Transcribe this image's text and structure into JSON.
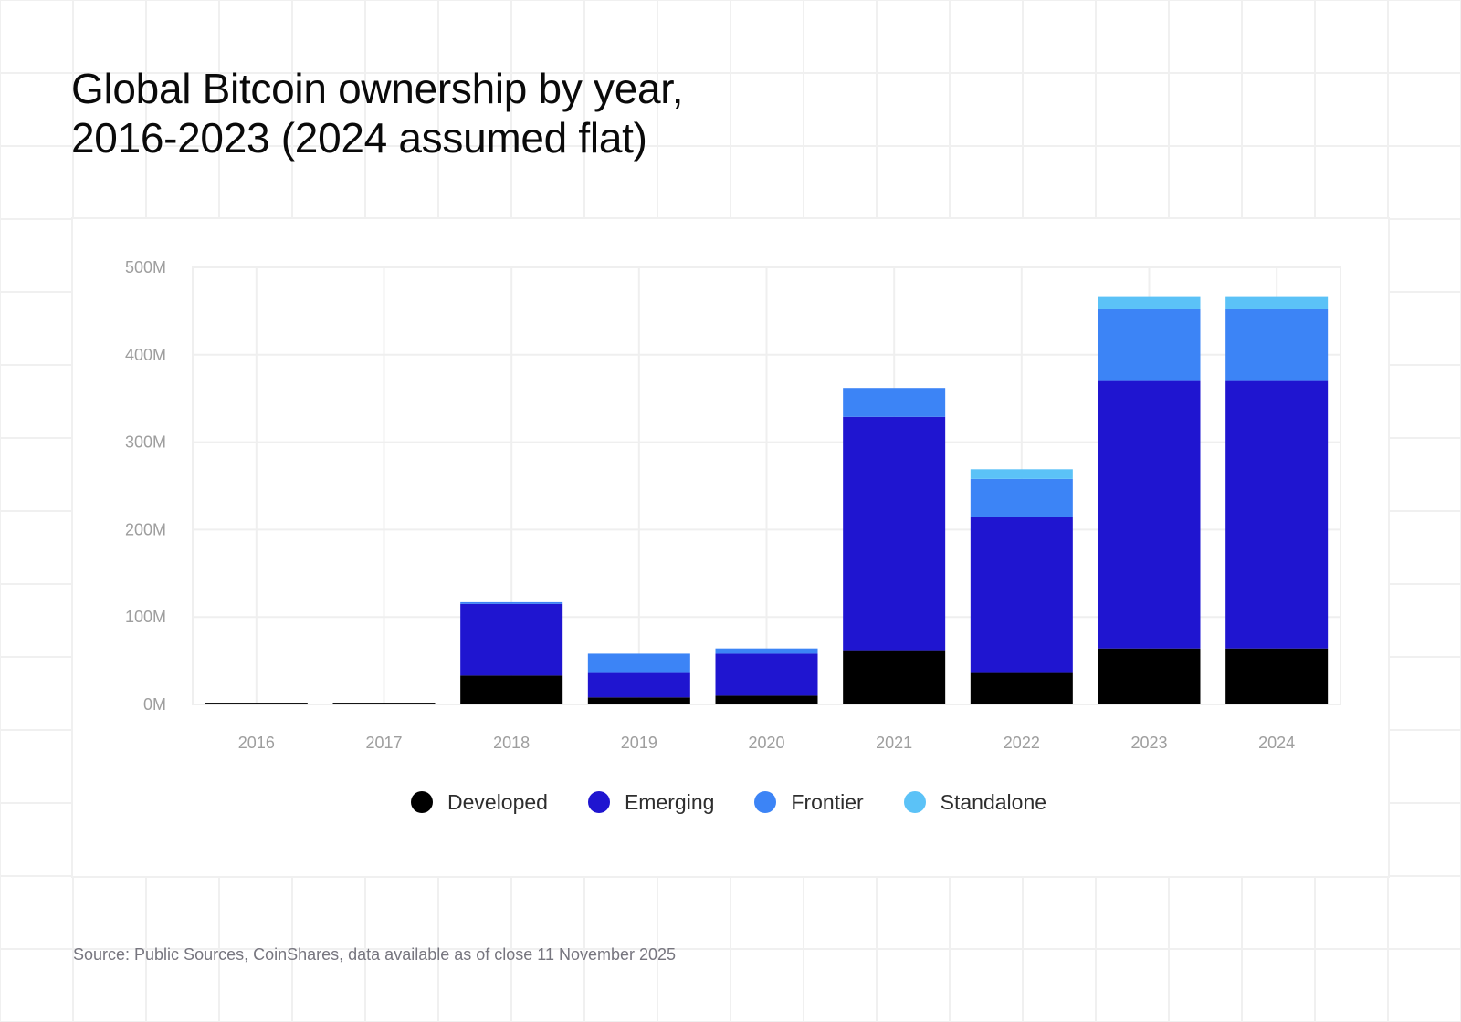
{
  "title": {
    "line1": "Global Bitcoin ownership by year,",
    "line2": "2016-2023 (2024 assumed flat)"
  },
  "source": "Source: Public Sources, CoinShares, data available as of close 11 November 2025",
  "chart_data": {
    "type": "bar",
    "stacked": true,
    "title": "Global Bitcoin ownership by year, 2016-2023 (2024 assumed flat)",
    "xlabel": "",
    "ylabel": "",
    "categories": [
      "2016",
      "2017",
      "2018",
      "2019",
      "2020",
      "2021",
      "2022",
      "2023",
      "2024"
    ],
    "series": [
      {
        "name": "Developed",
        "color": "#000000",
        "values": [
          2,
          2,
          33,
          8,
          10,
          62,
          37,
          64,
          64
        ]
      },
      {
        "name": "Emerging",
        "color": "#1f15d0",
        "values": [
          0,
          0,
          82,
          29,
          48,
          267,
          177,
          307,
          307
        ]
      },
      {
        "name": "Frontier",
        "color": "#3c84f6",
        "values": [
          0,
          0,
          2,
          21,
          6,
          33,
          44,
          81,
          81
        ]
      },
      {
        "name": "Standalone",
        "color": "#5bc2f7",
        "values": [
          0,
          0,
          0,
          0,
          0,
          0,
          11,
          15,
          15
        ]
      }
    ],
    "ylim": [
      0,
      500
    ],
    "yticks": [
      0,
      100,
      200,
      300,
      400,
      500
    ],
    "ytick_labels": [
      "0M",
      "100M",
      "200M",
      "300M",
      "400M",
      "500M"
    ],
    "unit": "M",
    "grid": true,
    "legend": "bottom-center"
  }
}
